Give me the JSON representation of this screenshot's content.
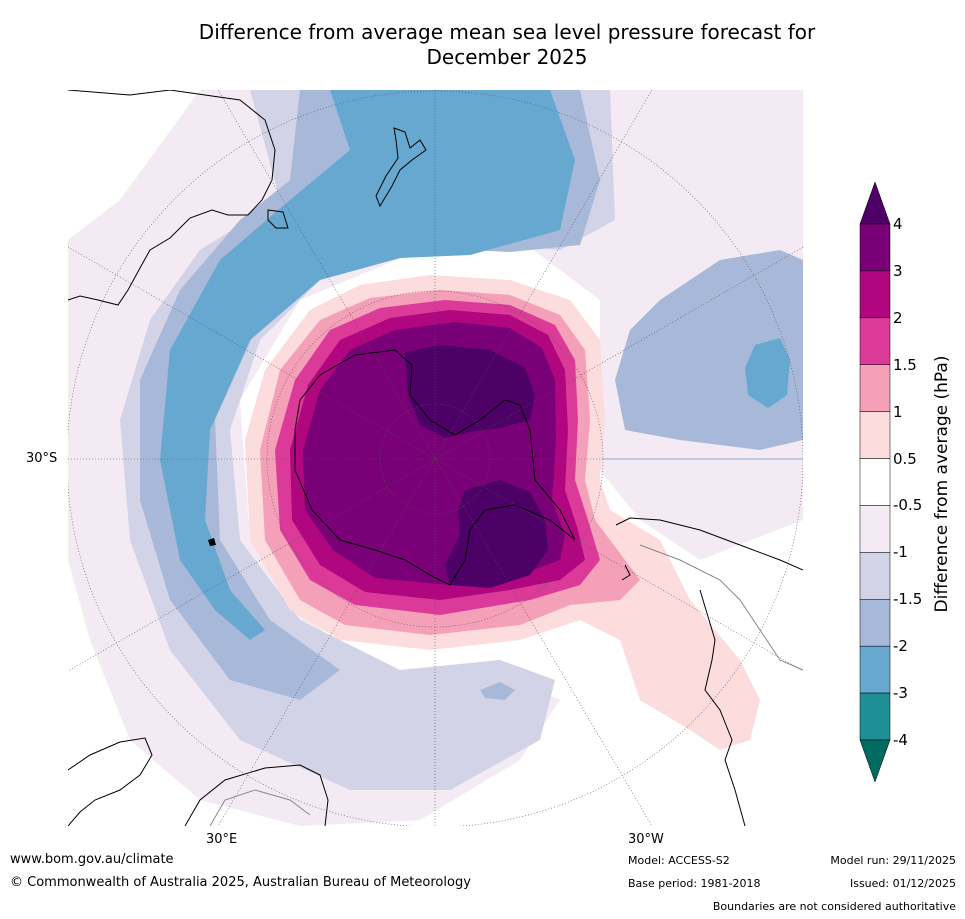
{
  "title": {
    "line1": "Difference from average mean sea level pressure forecast for",
    "line2": "December 2025"
  },
  "map": {
    "projection": "south polar stereographic",
    "lat_label": "30°S",
    "lon_label_left": "30°E",
    "lon_label_right": "30°W"
  },
  "colorbar": {
    "title": "Difference from average (hPa)",
    "tick_labels": [
      "4",
      "3",
      "2",
      "1.5",
      "1",
      "0.5",
      "-0.5",
      "-1",
      "-1.5",
      "-2",
      "-3",
      "-4"
    ],
    "colors": [
      "#4d0066",
      "#7a0078",
      "#b0067f",
      "#dc3a98",
      "#f4a0b8",
      "#fcdcdc",
      "#ffffff",
      "#f3eaf4",
      "#d2d3e6",
      "#a8b8d8",
      "#66a8cf",
      "#1f8f96",
      "#006b5e"
    ]
  },
  "footer": {
    "website": "www.bom.gov.au/climate",
    "copyright": "© Commonwealth of Australia 2025, Australian Bureau of Meteorology",
    "model": "Model: ACCESS-S2",
    "base_period": "Base period: 1981-2018",
    "model_run": "Model run: 29/11/2025",
    "issued": "Issued: 01/12/2025",
    "disclaimer": "Boundaries are not considered authoritative"
  }
}
